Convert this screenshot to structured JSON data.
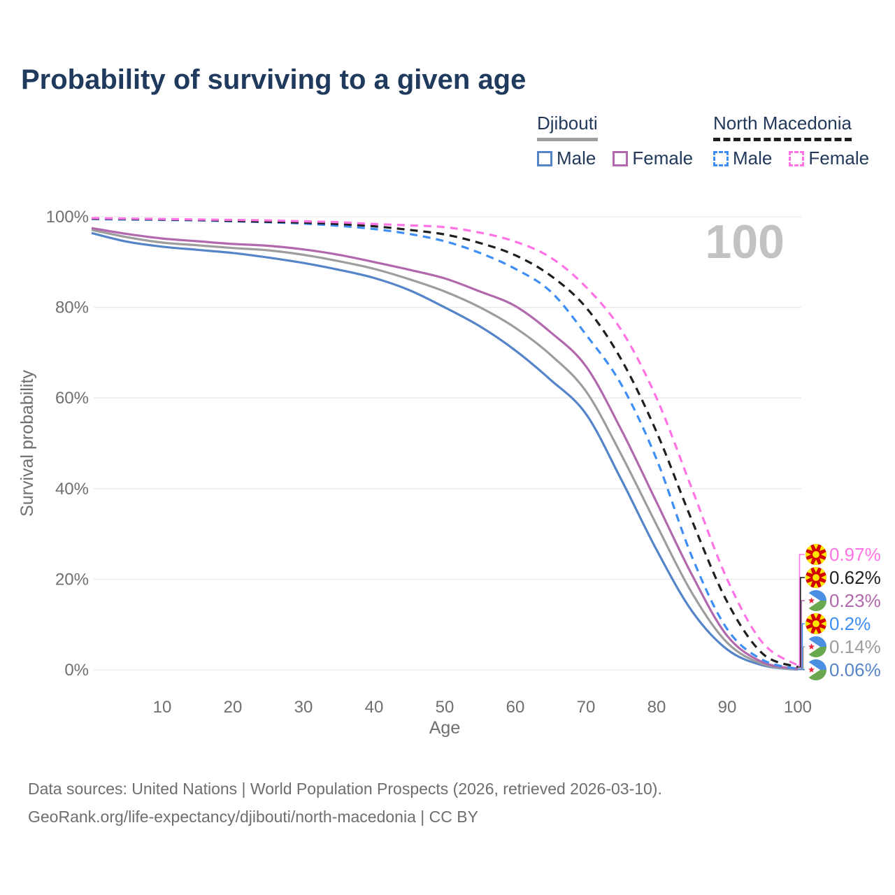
{
  "title": "Probability of surviving to a given age",
  "watermark": "100",
  "legend": {
    "groups": [
      {
        "country": "Djibouti",
        "line_style": "solid",
        "underline_color": "#9e9e9e",
        "items": [
          {
            "label": "Male",
            "color": "#5585c8"
          },
          {
            "label": "Female",
            "color": "#b168ad"
          }
        ]
      },
      {
        "country": "North Macedonia",
        "line_style": "dashed",
        "underline_color": "#1f1f1f",
        "items": [
          {
            "label": "Male",
            "color": "#3e8ef4"
          },
          {
            "label": "Female",
            "color": "#ff74e4"
          }
        ]
      }
    ]
  },
  "end_labels": [
    {
      "value": "0.97%",
      "series_index": 5,
      "country": "North Macedonia",
      "flag": "north-macedonia-flag-icon",
      "color": "#ff74e4"
    },
    {
      "value": "0.62%",
      "series_index": 4,
      "country": "North Macedonia",
      "flag": "north-macedonia-flag-icon",
      "color": "#1f1f1f"
    },
    {
      "value": "0.23%",
      "series_index": 2,
      "country": "Djibouti",
      "flag": "djibouti-flag-icon",
      "color": "#b168ad"
    },
    {
      "value": "0.2%",
      "series_index": 3,
      "country": "North Macedonia",
      "flag": "north-macedonia-flag-icon",
      "color": "#3e8ef4"
    },
    {
      "value": "0.14%",
      "series_index": 1,
      "country": "Djibouti",
      "flag": "djibouti-flag-icon",
      "color": "#9d9d9d"
    },
    {
      "value": "0.06%",
      "series_index": 0,
      "country": "Djibouti",
      "flag": "djibouti-flag-icon",
      "color": "#5585c8"
    }
  ],
  "footer": {
    "line1": "Data sources: United Nations | World Population Prospects (2026, retrieved 2026-03-10).",
    "line2": "GeoRank.org/life-expectancy/djibouti/north-macedonia | CC BY"
  },
  "chart_data": {
    "type": "line",
    "title": "Probability of surviving to a given age",
    "xlabel": "Age",
    "ylabel": "Survival probability",
    "xlim": [
      0,
      100
    ],
    "ylim": [
      0,
      100
    ],
    "grid": "horizontal-only",
    "legend_position": "top-right",
    "y_ticks": [
      {
        "value": 100,
        "label": "100%"
      },
      {
        "value": 80,
        "label": "80%"
      },
      {
        "value": 60,
        "label": "60%"
      },
      {
        "value": 40,
        "label": "40%"
      },
      {
        "value": 20,
        "label": "20%"
      },
      {
        "value": 0,
        "label": "0%"
      }
    ],
    "x_ticks": [
      {
        "value": 10,
        "label": "10"
      },
      {
        "value": 20,
        "label": "20"
      },
      {
        "value": 30,
        "label": "30"
      },
      {
        "value": 40,
        "label": "40"
      },
      {
        "value": 50,
        "label": "50"
      },
      {
        "value": 60,
        "label": "60"
      },
      {
        "value": 70,
        "label": "70"
      },
      {
        "value": 80,
        "label": "80"
      },
      {
        "value": 90,
        "label": "90"
      },
      {
        "value": 100,
        "label": "100"
      }
    ],
    "x": [
      0,
      5,
      10,
      15,
      20,
      25,
      30,
      35,
      40,
      45,
      50,
      55,
      60,
      65,
      70,
      75,
      80,
      85,
      90,
      95,
      100
    ],
    "series": [
      {
        "name": "Djibouti Male",
        "country": "Djibouti",
        "sex": "Male",
        "dash": "solid",
        "color": "#5585c8",
        "values": [
          96.4,
          94.5,
          93.4,
          92.7,
          92.0,
          91.0,
          89.8,
          88.3,
          86.5,
          83.8,
          80.0,
          75.8,
          70.5,
          64.0,
          56.5,
          42.0,
          26.5,
          13.0,
          4.5,
          1.0,
          0.06
        ]
      },
      {
        "name": "Djibouti Both sexes",
        "country": "Djibouti",
        "sex": "Both sexes",
        "dash": "solid",
        "color": "#9d9d9d",
        "values": [
          97.1,
          95.5,
          94.3,
          93.7,
          93.1,
          92.6,
          91.6,
          90.2,
          88.5,
          86.2,
          83.5,
          80.0,
          75.5,
          69.5,
          61.5,
          47.5,
          32.0,
          17.0,
          6.0,
          1.3,
          0.14
        ]
      },
      {
        "name": "Djibouti Female",
        "country": "Djibouti",
        "sex": "Female",
        "dash": "solid",
        "color": "#b168ad",
        "values": [
          97.5,
          96.2,
          95.2,
          94.6,
          94.0,
          93.6,
          92.8,
          91.6,
          90.0,
          88.3,
          86.4,
          83.5,
          80.3,
          74.5,
          67.0,
          53.0,
          37.0,
          21.0,
          7.5,
          1.7,
          0.23
        ]
      },
      {
        "name": "North Macedonia Male",
        "country": "North Macedonia",
        "sex": "Male",
        "dash": "dashed",
        "color": "#3e8ef4",
        "values": [
          99.5,
          99.4,
          99.3,
          99.2,
          99.0,
          98.8,
          98.5,
          98.0,
          97.3,
          96.2,
          94.6,
          92.0,
          88.5,
          83.5,
          74.0,
          63.0,
          46.5,
          25.0,
          9.0,
          2.2,
          0.2
        ]
      },
      {
        "name": "North Macedonia Both sexes",
        "country": "North Macedonia",
        "sex": "Both sexes",
        "dash": "dashed",
        "color": "#1f1f1f",
        "values": [
          99.6,
          99.5,
          99.4,
          99.3,
          99.1,
          98.9,
          98.7,
          98.4,
          97.9,
          97.1,
          96.1,
          94.2,
          91.5,
          87.0,
          80.0,
          68.5,
          52.5,
          33.0,
          15.0,
          3.6,
          0.62
        ]
      },
      {
        "name": "North Macedonia Female",
        "country": "North Macedonia",
        "sex": "Female",
        "dash": "dashed",
        "color": "#ff74e4",
        "values": [
          99.7,
          99.6,
          99.5,
          99.4,
          99.3,
          99.2,
          99.0,
          98.8,
          98.4,
          98.1,
          97.7,
          96.5,
          94.5,
          91.0,
          84.5,
          75.0,
          60.0,
          40.0,
          20.0,
          6.0,
          0.97
        ]
      }
    ]
  }
}
